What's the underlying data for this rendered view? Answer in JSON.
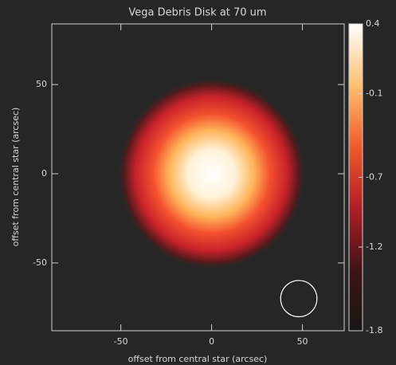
{
  "chart_data": {
    "type": "image",
    "title": "Vega Debris Disk at 70 um",
    "xlabel": "offset from central star (arcsec)",
    "ylabel": "offset from central star (arcsec)",
    "xlim": [
      -88,
      73
    ],
    "ylim": [
      -88,
      84
    ],
    "xticks": [
      -50,
      0,
      50
    ],
    "yticks": [
      -50,
      0,
      50
    ],
    "colorbar": {
      "lim": [
        -1.8,
        0.4
      ],
      "ticks": [
        0.4,
        -0.1,
        -0.7,
        -1.2,
        -1.8
      ]
    }
  }
}
